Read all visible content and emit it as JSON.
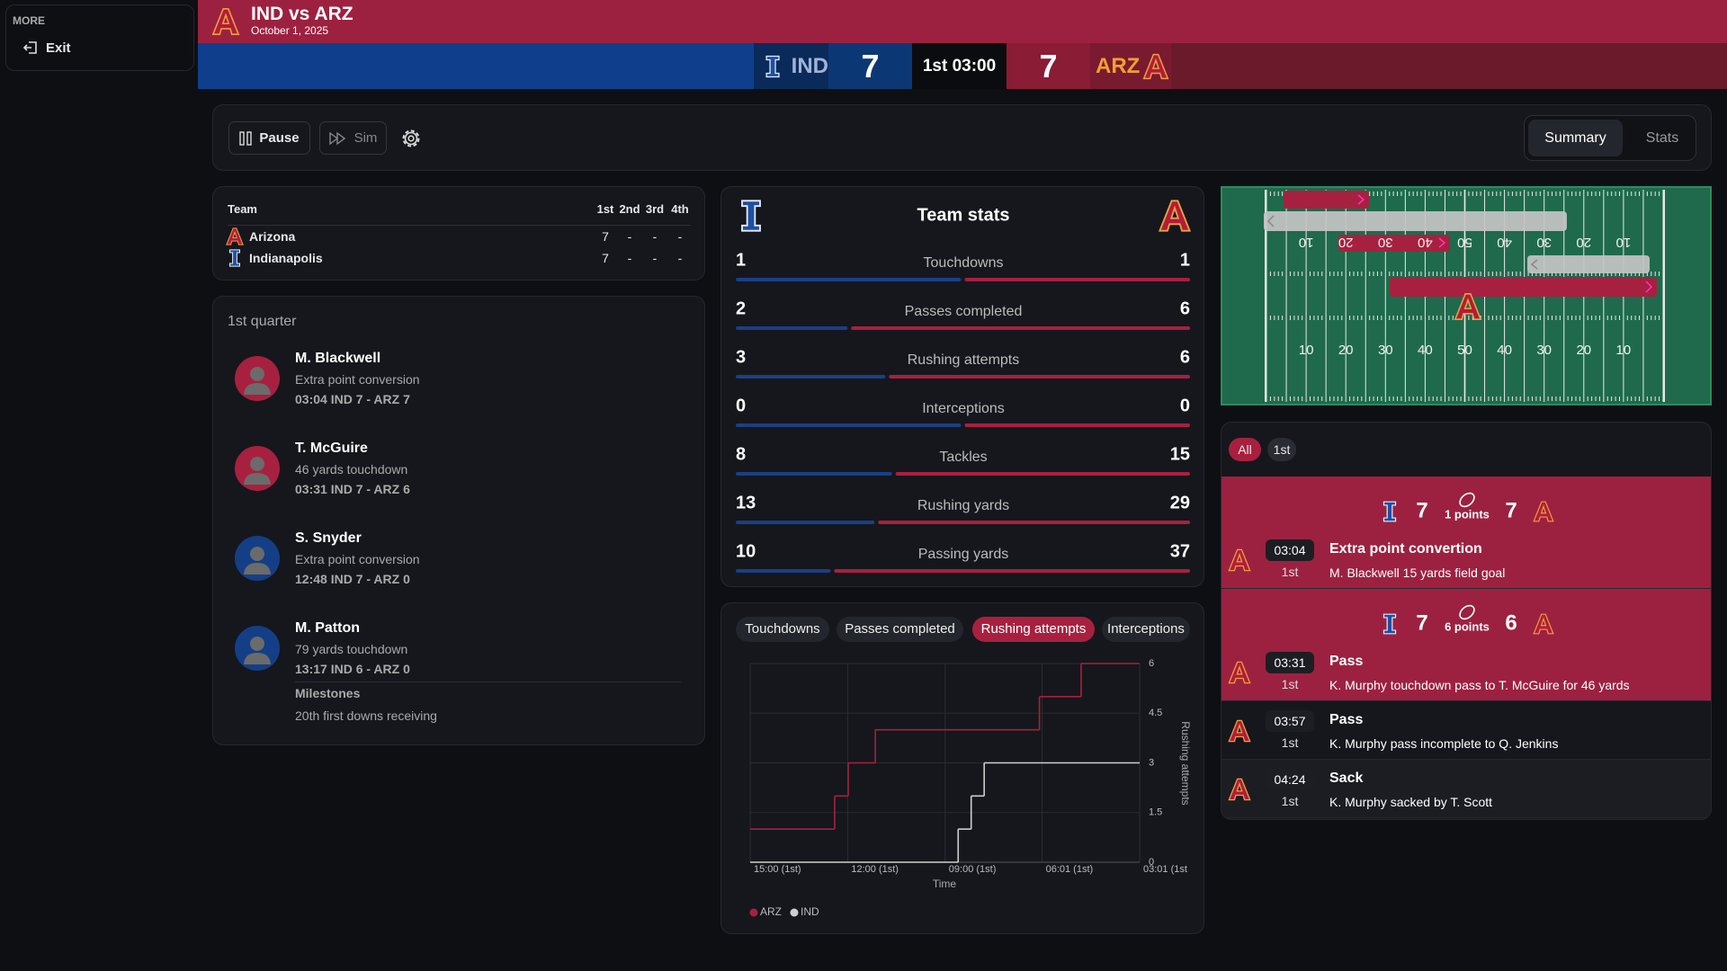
{
  "sidebar": {
    "heading": "MORE",
    "exit": "Exit"
  },
  "header": {
    "title": "IND vs ARZ",
    "date": "October 1, 2025"
  },
  "scorebar": {
    "home": "IND",
    "home_score": 7,
    "clock": "1st 03:00",
    "away_score": 7,
    "away": "ARZ"
  },
  "controls": {
    "pause": "Pause",
    "sim": "Sim",
    "tabs": [
      "Summary",
      "Stats"
    ],
    "active": 0
  },
  "scoreboard": {
    "header": [
      "Team",
      "1st",
      "2nd",
      "3rd",
      "4th"
    ],
    "rows": [
      [
        "Arizona",
        7,
        "-",
        "-",
        "-"
      ],
      [
        "Indianapolis",
        7,
        "-",
        "-",
        "-"
      ]
    ]
  },
  "quarter": {
    "title": "1st quarter",
    "plays": [
      {
        "name": "M. Blackwell",
        "desc": "Extra point conversion",
        "detail": "03:04 IND 7 - ARZ 7",
        "color": "#a8203f"
      },
      {
        "name": "T. McGuire",
        "desc": "46 yards touchdown",
        "detail": "03:31 IND 7 - ARZ 6",
        "color": "#a8203f"
      },
      {
        "name": "S. Snyder",
        "desc": "Extra point conversion",
        "detail": "12:48 IND 7 - ARZ 0",
        "color": "#143f86"
      },
      {
        "name": "M. Patton",
        "desc": "79 yards touchdown",
        "detail": "13:17 IND 6 - ARZ 0",
        "color": "#143f86"
      }
    ],
    "milestones_title": "Milestones",
    "milestones": [
      "20th first downs receiving"
    ]
  },
  "team_stats": {
    "title": "Team stats",
    "left_color": "#1a3f86",
    "right_color": "#a8203f",
    "rows": [
      {
        "label": "Touchdowns",
        "left": 1,
        "right": 1
      },
      {
        "label": "Passes completed",
        "left": 2,
        "right": 6
      },
      {
        "label": "Rushing attempts",
        "left": 3,
        "right": 6
      },
      {
        "label": "Interceptions",
        "left": 0,
        "right": 0
      },
      {
        "label": "Tackles",
        "left": 8,
        "right": 15
      },
      {
        "label": "Rushing yards",
        "left": 13,
        "right": 29
      },
      {
        "label": "Passing yards",
        "left": 10,
        "right": 37
      }
    ]
  },
  "stat_tabs": {
    "items": [
      "Touchdowns",
      "Passes completed",
      "Rushing attempts",
      "Interceptions"
    ],
    "active": 2
  },
  "chart_data": {
    "type": "line",
    "step": true,
    "xlabel": "Time",
    "ylabel": "Rushing attempts",
    "xlim": [
      900,
      181
    ],
    "xticks": [
      {
        "value": 900,
        "label": "15:00 (1st)"
      },
      {
        "value": 720,
        "label": "12:00 (1st)"
      },
      {
        "value": 540,
        "label": "09:00 (1st)"
      },
      {
        "value": 361,
        "label": "06:01 (1st)"
      },
      {
        "value": 181,
        "label": "03:01 (1st"
      }
    ],
    "ylim": [
      0,
      6
    ],
    "yticks": [
      0,
      1.5,
      3,
      4.5,
      6
    ],
    "grid": true,
    "legend": "bottom-left",
    "series": [
      {
        "name": "ARZ",
        "color": "#a8203f",
        "x": [
          900,
          744,
          719,
          669,
          366,
          289,
          181
        ],
        "values": [
          1,
          2,
          3,
          4,
          5,
          6,
          6
        ]
      },
      {
        "name": "IND",
        "color": "#cfcfcf",
        "x": [
          900,
          516,
          492,
          468,
          181
        ],
        "values": [
          0,
          1,
          2,
          3,
          3
        ]
      }
    ]
  },
  "field": {
    "yard_labels": [
      10,
      20,
      30,
      40,
      50,
      40,
      30,
      20,
      10
    ]
  },
  "plays": {
    "filters": [
      "All",
      "1st"
    ],
    "active": 0,
    "items": [
      {
        "score": {
          "left": 7,
          "points": "1 points",
          "right": 7
        },
        "time": "03:04",
        "quarter": "1st",
        "title": "Extra point convertion",
        "desc": "M. Blackwell 15 yards field goal",
        "highlight": true
      },
      {
        "score": {
          "left": 7,
          "points": "6 points",
          "right": 6
        },
        "time": "03:31",
        "quarter": "1st",
        "title": "Pass",
        "desc": "K. Murphy touchdown pass to T. McGuire for 46 yards",
        "highlight": true
      },
      {
        "time": "03:57",
        "quarter": "1st",
        "title": "Pass",
        "desc": "K. Murphy pass incomplete to Q. Jenkins",
        "highlight": false
      },
      {
        "time": "04:24",
        "quarter": "1st",
        "title": "Sack",
        "desc": "K. Murphy sacked by T. Scott",
        "highlight": false
      }
    ]
  }
}
